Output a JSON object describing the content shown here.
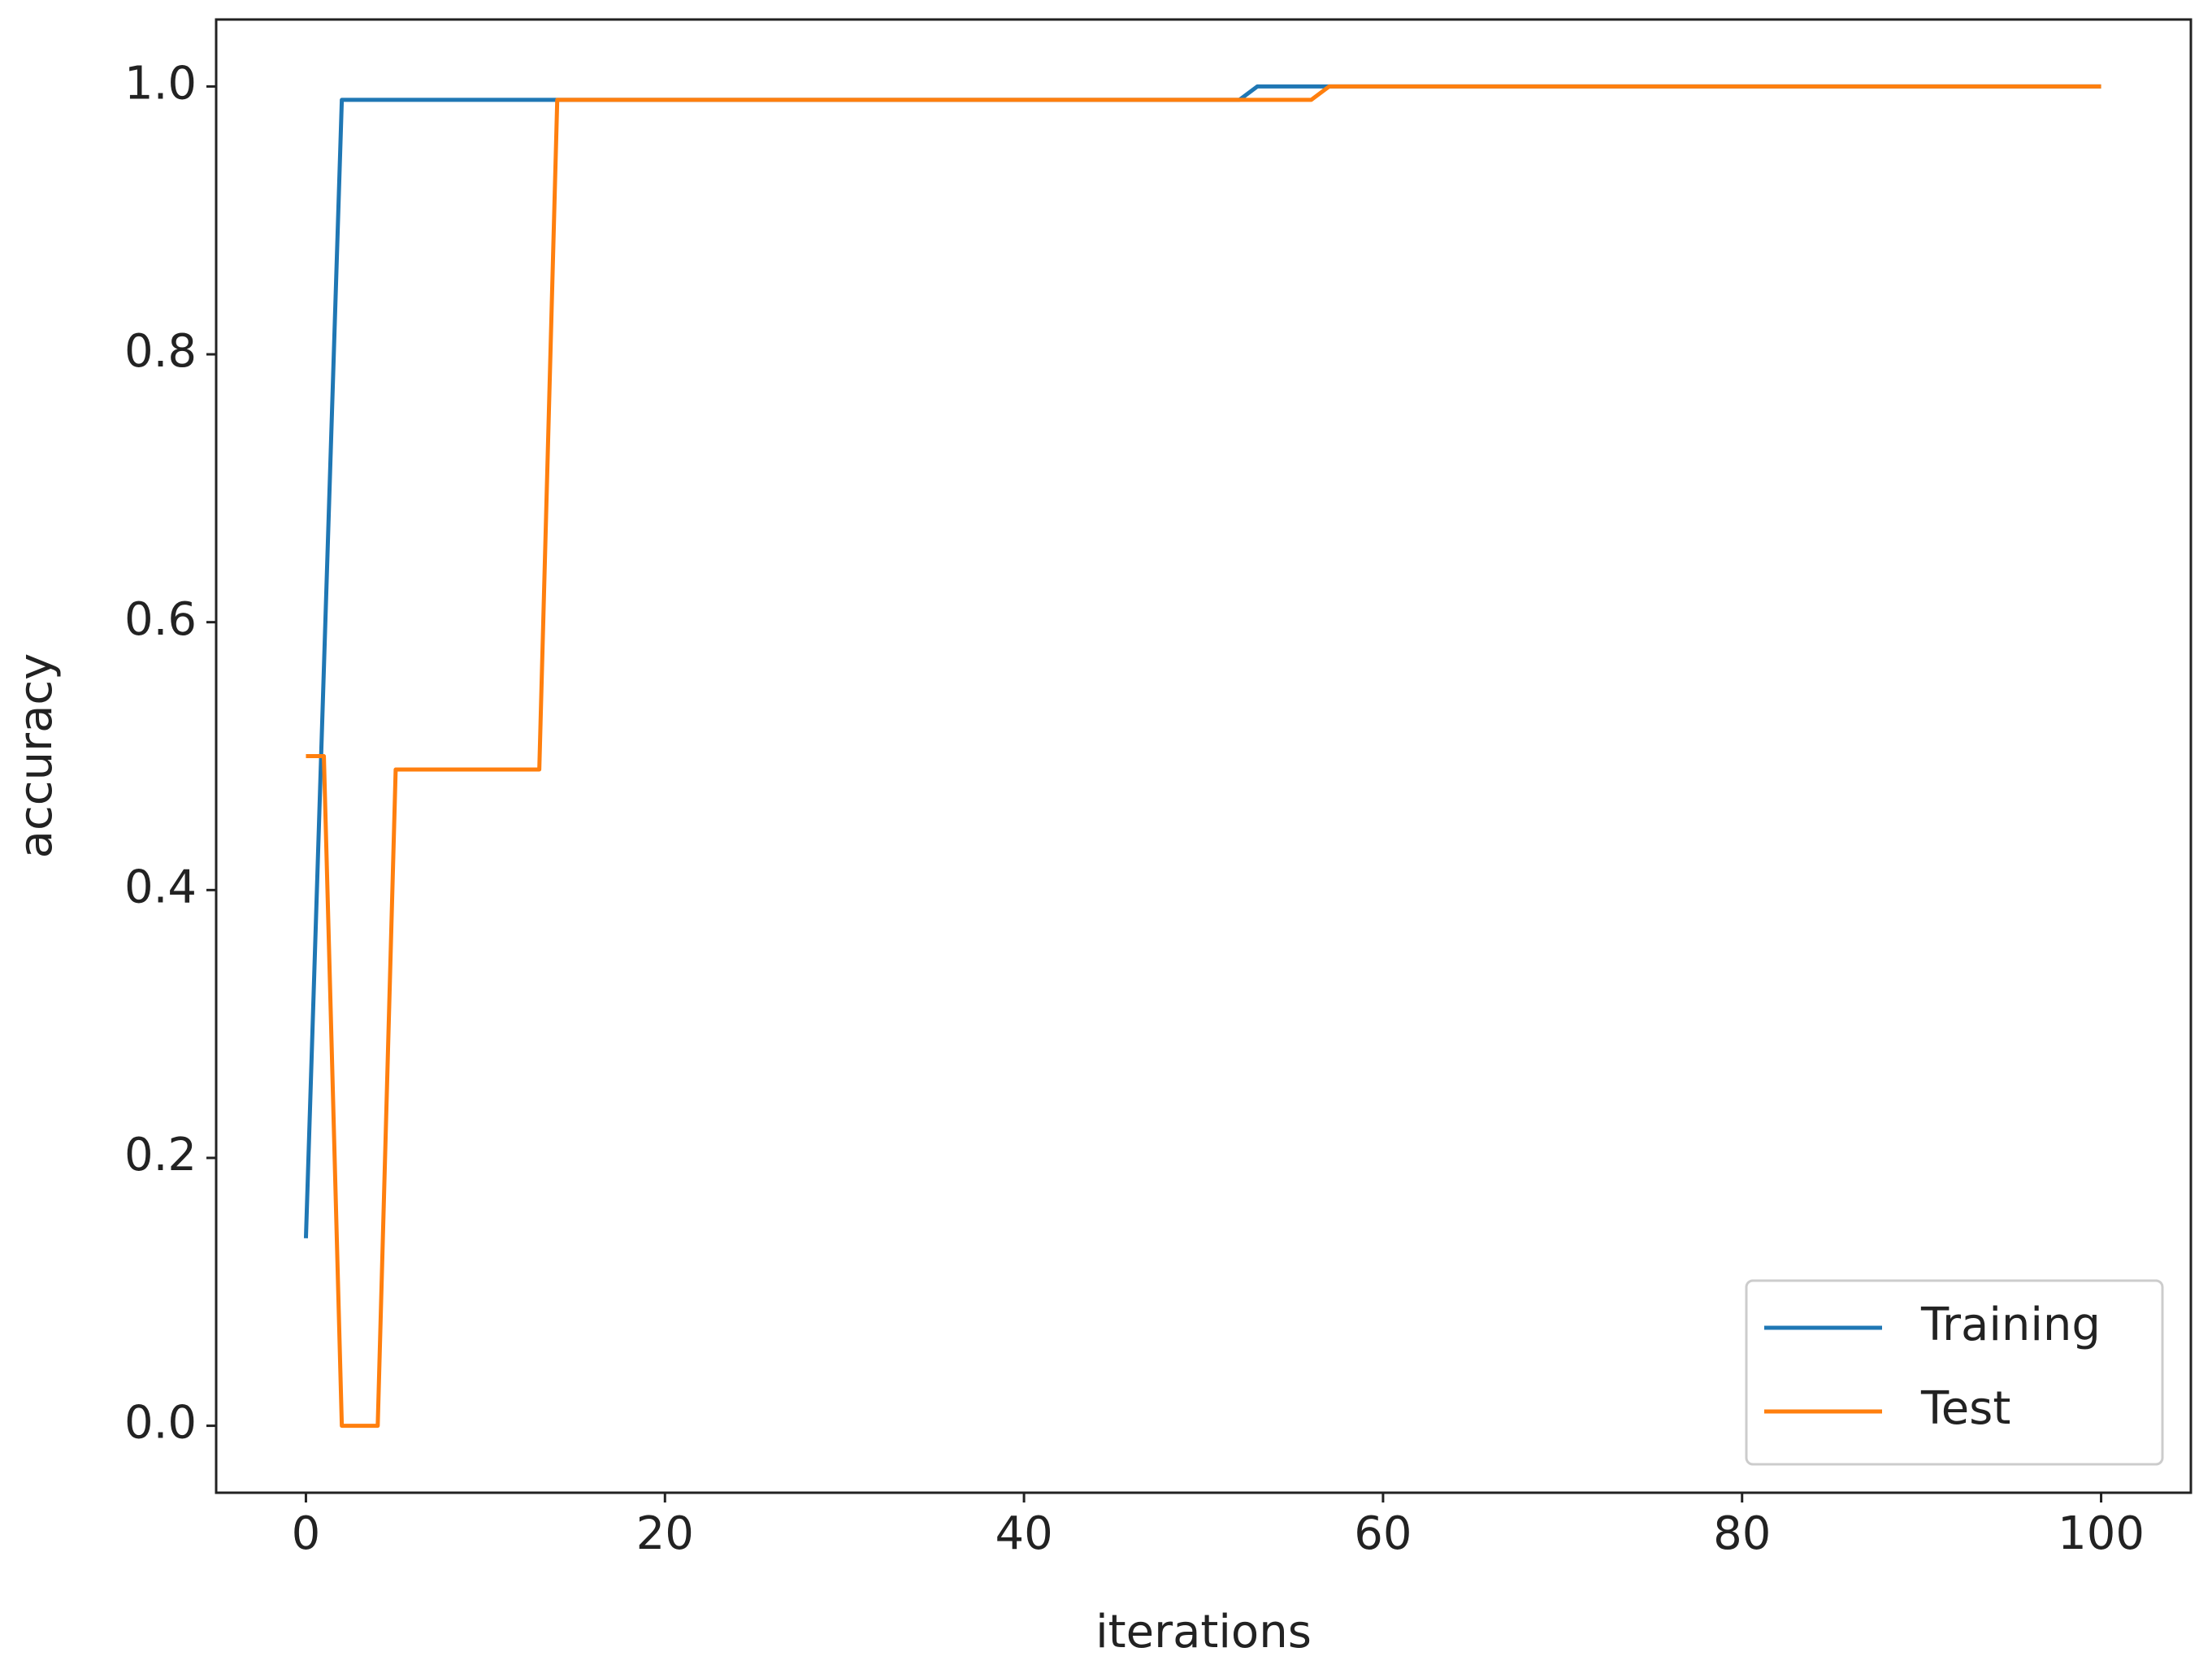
{
  "chart_data": {
    "type": "line",
    "xlabel": "iterations",
    "ylabel": "accuracy",
    "series": [
      {
        "name": "Training",
        "color": "#1f77b4",
        "x": [
          0,
          2,
          52,
          53,
          100
        ],
        "values": [
          0.14,
          0.99,
          0.99,
          1.0,
          1.0
        ]
      },
      {
        "name": "Test",
        "color": "#ff7f0e",
        "x": [
          0,
          1,
          2,
          4,
          5,
          13,
          14,
          56,
          57,
          100
        ],
        "values": [
          0.5,
          0.5,
          0,
          0,
          0.49,
          0.49,
          0.99,
          0.99,
          1.0,
          1.0
        ]
      }
    ],
    "xlim": [
      -5,
      105
    ],
    "xticks": [
      0,
      20,
      40,
      60,
      80,
      100
    ],
    "ylim": [
      -0.05,
      1.05
    ],
    "yticks": [
      {
        "value": 0,
        "label": "0.0"
      },
      0.2,
      0.4,
      0.6,
      0.8,
      {
        "value": 1,
        "label": "1.0"
      }
    ],
    "grid": false,
    "legend": "lower right"
  }
}
